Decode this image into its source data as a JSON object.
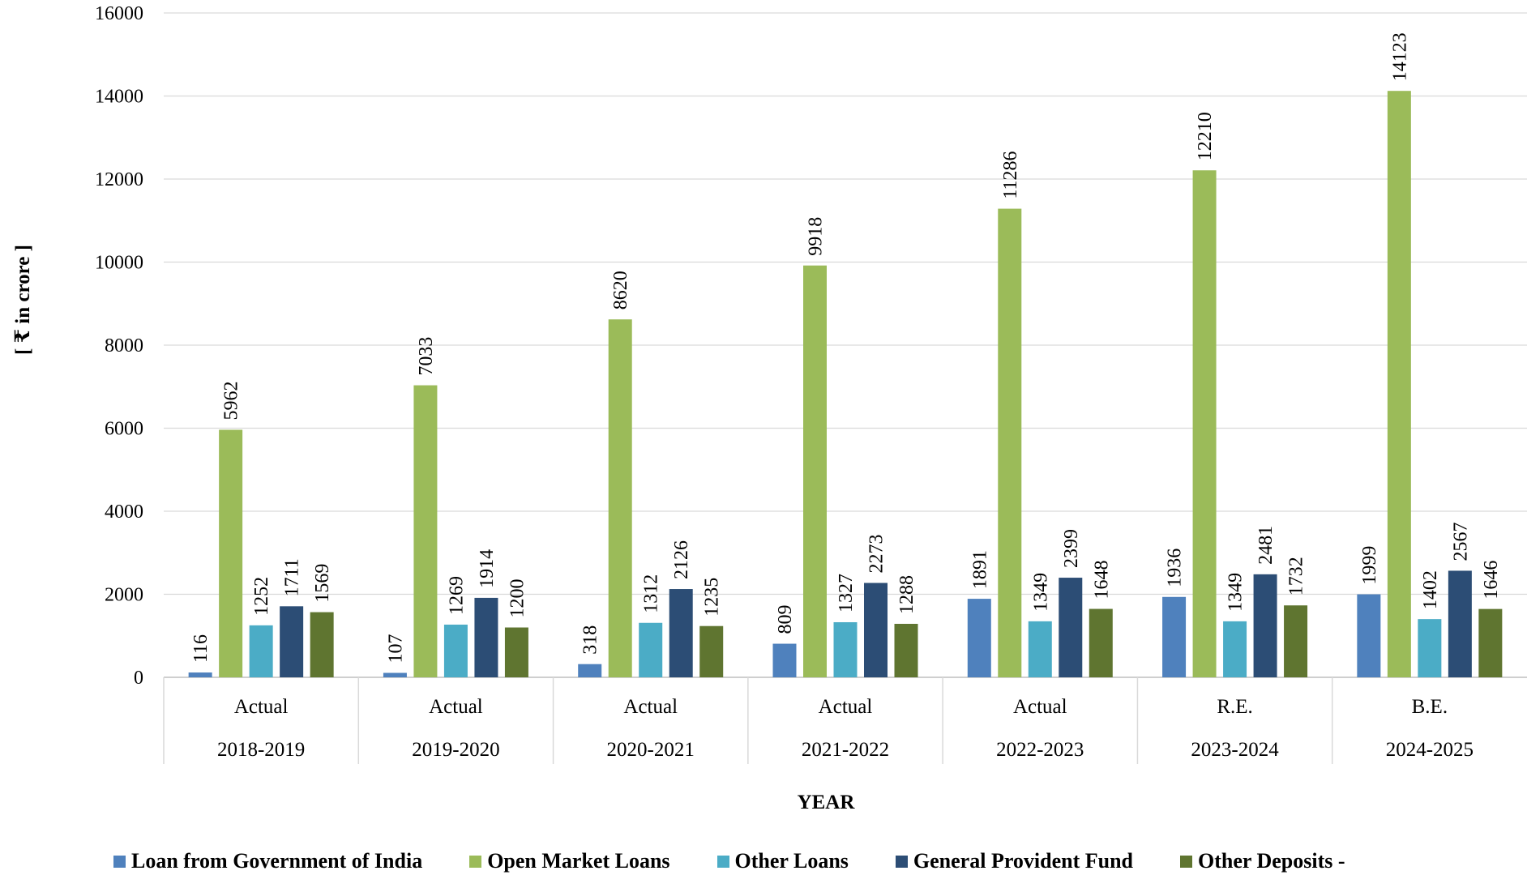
{
  "chart_data": {
    "type": "bar",
    "ylabel": "[ ₹ in crore ]",
    "xlabel": "YEAR",
    "ylim": [
      0,
      16000
    ],
    "yticks": [
      0,
      2000,
      4000,
      6000,
      8000,
      10000,
      12000,
      14000,
      16000
    ],
    "grid": true,
    "legend_position": "bottom",
    "categories": [
      {
        "status": "Actual",
        "year": "2018-2019"
      },
      {
        "status": "Actual",
        "year": "2019-2020"
      },
      {
        "status": "Actual",
        "year": "2020-2021"
      },
      {
        "status": "Actual",
        "year": "2021-2022"
      },
      {
        "status": "Actual",
        "year": "2022-2023"
      },
      {
        "status": "R.E.",
        "year": "2023-2024"
      },
      {
        "status": "B.E.",
        "year": "2024-2025"
      }
    ],
    "series": [
      {
        "name": "Loan from Government of India",
        "color": "#4f81bd",
        "values": [
          116,
          107,
          318,
          809,
          1891,
          1936,
          1999
        ]
      },
      {
        "name": "Open Market Loans",
        "color": "#9bbb59",
        "values": [
          5962,
          7033,
          8620,
          9918,
          11286,
          12210,
          14123
        ]
      },
      {
        "name": "Other Loans",
        "color": "#4bacc6",
        "values": [
          1252,
          1269,
          1312,
          1327,
          1349,
          1349,
          1402
        ]
      },
      {
        "name": "General Provident Fund",
        "color": "#2c4d75",
        "values": [
          1711,
          1914,
          2126,
          2273,
          2399,
          2481,
          2567
        ]
      },
      {
        "name": "Other Deposits -",
        "color": "#5f7530",
        "values": [
          1569,
          1200,
          1235,
          1288,
          1648,
          1732,
          1646
        ]
      }
    ]
  }
}
